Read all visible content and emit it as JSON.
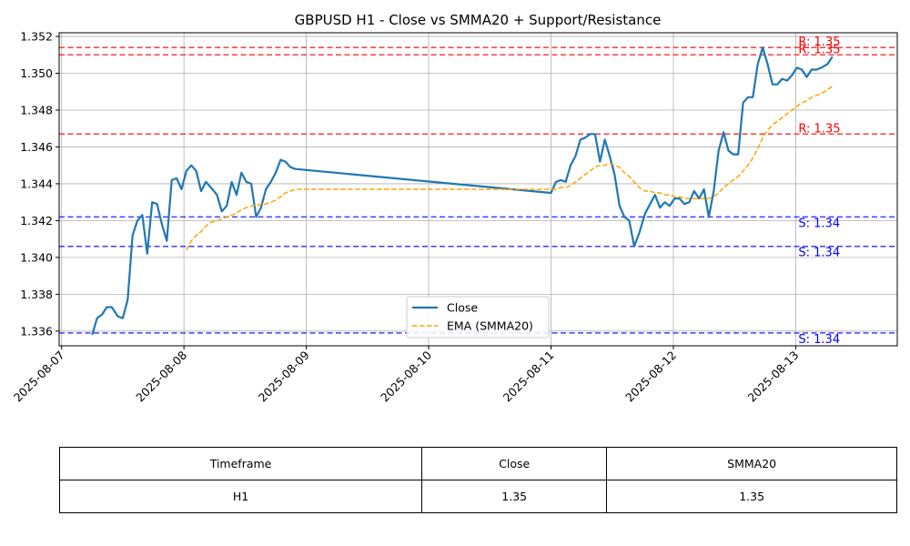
{
  "chart_data": {
    "type": "line",
    "title": "GBPUSD H1 - Close vs SMMA20 + Support/Resistance",
    "xlabel": "",
    "ylabel": "",
    "x_tick_labels": [
      "2025-08-07",
      "2025-08-08",
      "2025-08-09",
      "2025-08-10",
      "2025-08-11",
      "2025-08-12",
      "2025-08-13"
    ],
    "xlim": [
      -0.02,
      6.83
    ],
    "ylim": [
      1.3352,
      1.3522
    ],
    "y_ticks": [
      1.336,
      1.338,
      1.34,
      1.342,
      1.344,
      1.346,
      1.348,
      1.35,
      1.352
    ],
    "y_tick_labels": [
      "1.336",
      "1.338",
      "1.340",
      "1.342",
      "1.344",
      "1.346",
      "1.348",
      "1.350",
      "1.352"
    ],
    "grid": true,
    "legend_position": "lower-center",
    "series": [
      {
        "name": "Close",
        "style": "solid",
        "color": "#1f77b4",
        "points": [
          [
            0.25,
            1.3358
          ],
          [
            0.29,
            1.3367
          ],
          [
            0.33,
            1.3369
          ],
          [
            0.37,
            1.3373
          ],
          [
            0.41,
            1.3373
          ],
          [
            0.46,
            1.3368
          ],
          [
            0.5,
            1.3367
          ],
          [
            0.54,
            1.3377
          ],
          [
            0.58,
            1.3412
          ],
          [
            0.62,
            1.342
          ],
          [
            0.66,
            1.3423
          ],
          [
            0.7,
            1.3402
          ],
          [
            0.74,
            1.343
          ],
          [
            0.78,
            1.3429
          ],
          [
            0.82,
            1.3418
          ],
          [
            0.86,
            1.3409
          ],
          [
            0.9,
            1.3442
          ],
          [
            0.94,
            1.3443
          ],
          [
            0.98,
            1.3437
          ],
          [
            1.02,
            1.3447
          ],
          [
            1.06,
            1.345
          ],
          [
            1.1,
            1.3447
          ],
          [
            1.14,
            1.3436
          ],
          [
            1.18,
            1.3441
          ],
          [
            1.22,
            1.3438
          ],
          [
            1.27,
            1.3434
          ],
          [
            1.31,
            1.3425
          ],
          [
            1.35,
            1.3428
          ],
          [
            1.39,
            1.3441
          ],
          [
            1.43,
            1.3434
          ],
          [
            1.47,
            1.3446
          ],
          [
            1.51,
            1.3441
          ],
          [
            1.55,
            1.344
          ],
          [
            1.59,
            1.3422
          ],
          [
            1.63,
            1.3427
          ],
          [
            1.67,
            1.3437
          ],
          [
            1.71,
            1.3441
          ],
          [
            1.75,
            1.3446
          ],
          [
            1.79,
            1.3453
          ],
          [
            1.83,
            1.3452
          ],
          [
            1.87,
            1.3449
          ],
          [
            1.91,
            1.3448
          ],
          [
            4.0,
            1.3435
          ],
          [
            4.04,
            1.3441
          ],
          [
            4.08,
            1.3442
          ],
          [
            4.12,
            1.3441
          ],
          [
            4.16,
            1.345
          ],
          [
            4.2,
            1.3455
          ],
          [
            4.24,
            1.3464
          ],
          [
            4.28,
            1.3465
          ],
          [
            4.32,
            1.3467
          ],
          [
            4.36,
            1.3467
          ],
          [
            4.4,
            1.3452
          ],
          [
            4.44,
            1.3464
          ],
          [
            4.48,
            1.3455
          ],
          [
            4.52,
            1.3445
          ],
          [
            4.56,
            1.3428
          ],
          [
            4.6,
            1.3422
          ],
          [
            4.64,
            1.342
          ],
          [
            4.68,
            1.3406
          ],
          [
            4.72,
            1.3413
          ],
          [
            4.77,
            1.3424
          ],
          [
            4.81,
            1.3429
          ],
          [
            4.85,
            1.3434
          ],
          [
            4.89,
            1.3427
          ],
          [
            4.93,
            1.343
          ],
          [
            4.97,
            1.3428
          ],
          [
            5.01,
            1.3432
          ],
          [
            5.05,
            1.3432
          ],
          [
            5.09,
            1.3429
          ],
          [
            5.13,
            1.343
          ],
          [
            5.17,
            1.3436
          ],
          [
            5.21,
            1.3432
          ],
          [
            5.25,
            1.3437
          ],
          [
            5.29,
            1.3422
          ],
          [
            5.33,
            1.3436
          ],
          [
            5.37,
            1.3458
          ],
          [
            5.41,
            1.3468
          ],
          [
            5.45,
            1.3458
          ],
          [
            5.49,
            1.3456
          ],
          [
            5.53,
            1.3456
          ],
          [
            5.57,
            1.3484
          ],
          [
            5.61,
            1.3487
          ],
          [
            5.65,
            1.3487
          ],
          [
            5.69,
            1.3505
          ],
          [
            5.73,
            1.3514
          ],
          [
            5.77,
            1.3505
          ],
          [
            5.81,
            1.3494
          ],
          [
            5.85,
            1.3494
          ],
          [
            5.89,
            1.3497
          ],
          [
            5.93,
            1.3496
          ],
          [
            5.97,
            1.3499
          ],
          [
            6.01,
            1.3503
          ],
          [
            6.05,
            1.3502
          ],
          [
            6.09,
            1.3498
          ],
          [
            6.13,
            1.3502
          ],
          [
            6.17,
            1.3502
          ],
          [
            6.21,
            1.3503
          ],
          [
            6.26,
            1.3505
          ],
          [
            6.3,
            1.3509
          ]
        ]
      },
      {
        "name": "EMA (SMMA20)",
        "style": "dashed",
        "color": "#ffa500",
        "points": [
          [
            1.02,
            1.3404
          ],
          [
            1.06,
            1.3409
          ],
          [
            1.1,
            1.3412
          ],
          [
            1.14,
            1.3414
          ],
          [
            1.18,
            1.3417
          ],
          [
            1.22,
            1.3419
          ],
          [
            1.27,
            1.342
          ],
          [
            1.31,
            1.3421
          ],
          [
            1.35,
            1.3422
          ],
          [
            1.39,
            1.3423
          ],
          [
            1.43,
            1.3424
          ],
          [
            1.47,
            1.3426
          ],
          [
            1.51,
            1.3427
          ],
          [
            1.55,
            1.3428
          ],
          [
            1.59,
            1.3428
          ],
          [
            1.63,
            1.3429
          ],
          [
            1.67,
            1.3429
          ],
          [
            1.71,
            1.343
          ],
          [
            1.75,
            1.3431
          ],
          [
            1.79,
            1.3433
          ],
          [
            1.83,
            1.3435
          ],
          [
            1.87,
            1.3436
          ],
          [
            1.91,
            1.3437
          ],
          [
            2.5,
            1.3437
          ],
          [
            3.5,
            1.3437
          ],
          [
            4.0,
            1.3437
          ],
          [
            4.04,
            1.3437
          ],
          [
            4.08,
            1.3438
          ],
          [
            4.12,
            1.3438
          ],
          [
            4.16,
            1.3439
          ],
          [
            4.2,
            1.3441
          ],
          [
            4.24,
            1.3443
          ],
          [
            4.28,
            1.3445
          ],
          [
            4.32,
            1.3447
          ],
          [
            4.36,
            1.3449
          ],
          [
            4.4,
            1.345
          ],
          [
            4.44,
            1.345
          ],
          [
            4.48,
            1.3451
          ],
          [
            4.52,
            1.345
          ],
          [
            4.56,
            1.3449
          ],
          [
            4.6,
            1.3446
          ],
          [
            4.64,
            1.3444
          ],
          [
            4.68,
            1.3441
          ],
          [
            4.72,
            1.3438
          ],
          [
            4.77,
            1.3436
          ],
          [
            4.81,
            1.3436
          ],
          [
            4.85,
            1.3435
          ],
          [
            4.89,
            1.3435
          ],
          [
            4.93,
            1.3434
          ],
          [
            4.97,
            1.3434
          ],
          [
            5.01,
            1.3433
          ],
          [
            5.05,
            1.3433
          ],
          [
            5.09,
            1.3432
          ],
          [
            5.13,
            1.3432
          ],
          [
            5.17,
            1.3432
          ],
          [
            5.21,
            1.3432
          ],
          [
            5.25,
            1.3432
          ],
          [
            5.29,
            1.3432
          ],
          [
            5.33,
            1.3433
          ],
          [
            5.37,
            1.3435
          ],
          [
            5.41,
            1.3438
          ],
          [
            5.45,
            1.344
          ],
          [
            5.49,
            1.3442
          ],
          [
            5.53,
            1.3444
          ],
          [
            5.57,
            1.3447
          ],
          [
            5.61,
            1.345
          ],
          [
            5.65,
            1.3454
          ],
          [
            5.69,
            1.3459
          ],
          [
            5.73,
            1.3465
          ],
          [
            5.77,
            1.3469
          ],
          [
            5.81,
            1.3472
          ],
          [
            5.85,
            1.3474
          ],
          [
            5.89,
            1.3476
          ],
          [
            5.93,
            1.3478
          ],
          [
            5.97,
            1.348
          ],
          [
            6.01,
            1.3482
          ],
          [
            6.05,
            1.3484
          ],
          [
            6.09,
            1.3485
          ],
          [
            6.13,
            1.3487
          ],
          [
            6.17,
            1.3488
          ],
          [
            6.21,
            1.3489
          ],
          [
            6.26,
            1.3491
          ],
          [
            6.3,
            1.3493
          ]
        ]
      }
    ],
    "resistance_levels": [
      {
        "value": 1.3514,
        "label": "R: 1.35"
      },
      {
        "value": 1.351,
        "label": "R: 1.35"
      },
      {
        "value": 1.3467,
        "label": "R: 1.35"
      }
    ],
    "support_levels": [
      {
        "value": 1.3422,
        "label": "S: 1.34"
      },
      {
        "value": 1.3406,
        "label": "S: 1.34"
      },
      {
        "value": 1.3359,
        "label": "S: 1.34"
      }
    ],
    "colors": {
      "close": "#1f77b4",
      "smma": "#ffa500",
      "resistance": "#ff0000",
      "support": "#0000ff"
    }
  },
  "table": {
    "headers": [
      "Timeframe",
      "Close",
      "SMMA20"
    ],
    "rows": [
      [
        "H1",
        "1.35",
        "1.35"
      ]
    ]
  }
}
